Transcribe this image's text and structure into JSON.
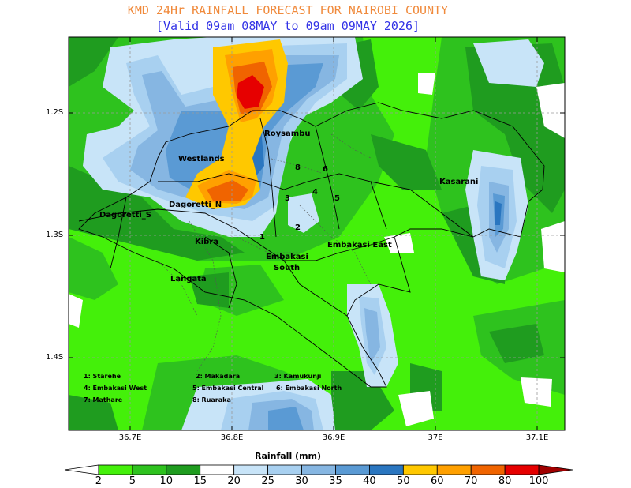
{
  "title": "KMD 24Hr RAINFALL FORECAST FOR NAIROBI COUNTY",
  "subtitle": "[Valid 09am 08MAY to 09am 09MAY 2026]",
  "y_ticks": [
    "1.2S",
    "1.3S",
    "1.4S"
  ],
  "x_ticks": [
    "36.7E",
    "36.8E",
    "36.9E",
    "37E",
    "37.1E"
  ],
  "places": {
    "roysambu": "Roysambu",
    "westlands": "Westlands",
    "kasarani": "Kasarani",
    "dagoretti_n": "Dagoretti_N",
    "dagoretti_s": "Dagoretti_S",
    "kibra": "Kibra",
    "embakasi_east": "Embakasi East",
    "embakasi_south_1": "Embakasi",
    "embakasi_south_2": "South",
    "langata": "Langata",
    "n1": "1",
    "n2": "2",
    "n3": "3",
    "n4": "4",
    "n5": "5",
    "n6": "6",
    "n8": "8"
  },
  "legend_keys": {
    "k1": "1:  Starehe",
    "k2": "2:  Makadara",
    "k3": "3:  Kamukunji",
    "k4": "4:  Embakasi West",
    "k5": "5:  Embakasi Central",
    "k6": "6:  Embakasi North",
    "k7": "7:  Mathare",
    "k8": "8:  Ruaraka"
  },
  "colorbar": {
    "title": "Rainfall (mm)",
    "labels": [
      "2",
      "5",
      "10",
      "15",
      "20",
      "25",
      "30",
      "35",
      "40",
      "50",
      "60",
      "70",
      "80",
      "100"
    ],
    "colors": [
      "#ffffff",
      "#44f00a",
      "#2ec21e",
      "#1f9c1f",
      "#ffffff",
      "#c8e4f8",
      "#a8d0f0",
      "#86b6e2",
      "#5a9ad4",
      "#2a76c0",
      "#ffc800",
      "#ffa000",
      "#f06400",
      "#e60000",
      "#a00000"
    ]
  },
  "colors": {
    "green_light": "#44f00a",
    "green_mid": "#2ec21e",
    "green_dark": "#1f9c1f",
    "blue_pale": "#c8e4f8",
    "blue_light": "#a8d0f0",
    "blue_mid": "#86b6e2",
    "blue": "#5a9ad4",
    "blue_dark": "#2a76c0",
    "yellow": "#ffc800",
    "orange_light": "#ffa000",
    "orange": "#f06400",
    "red": "#e60000"
  }
}
